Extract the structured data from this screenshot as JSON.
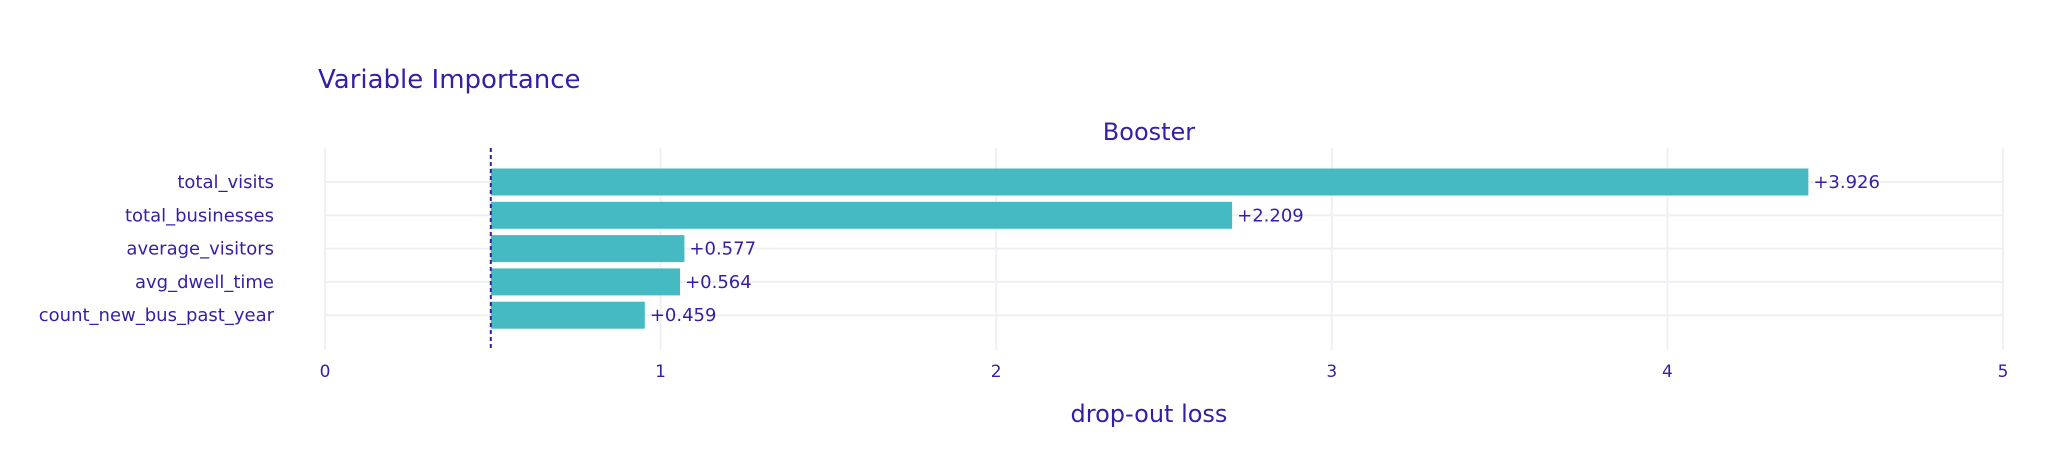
{
  "chart_data": {
    "type": "bar",
    "orientation": "horizontal",
    "title": "Variable Importance",
    "subtitle": "Booster",
    "xlabel": "drop-out loss",
    "ylabel": "",
    "baseline": 0.494,
    "xlim": [
      0,
      5
    ],
    "x_ticks": [
      "0",
      "1",
      "2",
      "3",
      "4",
      "5"
    ],
    "grid": true,
    "categories": [
      "total_visits",
      "total_businesses",
      "average_visitors",
      "avg_dwell_time",
      "count_new_bus_past_year"
    ],
    "contributions": [
      3.926,
      2.209,
      0.577,
      0.564,
      0.459
    ],
    "labels": [
      "+3.926",
      "+2.209",
      "+0.577",
      "+0.564",
      "+0.459"
    ],
    "colors": {
      "bar": "#46bac2",
      "text": "#371ea3",
      "grid": "#f0f0f4",
      "baseline": "#371ea3"
    }
  }
}
